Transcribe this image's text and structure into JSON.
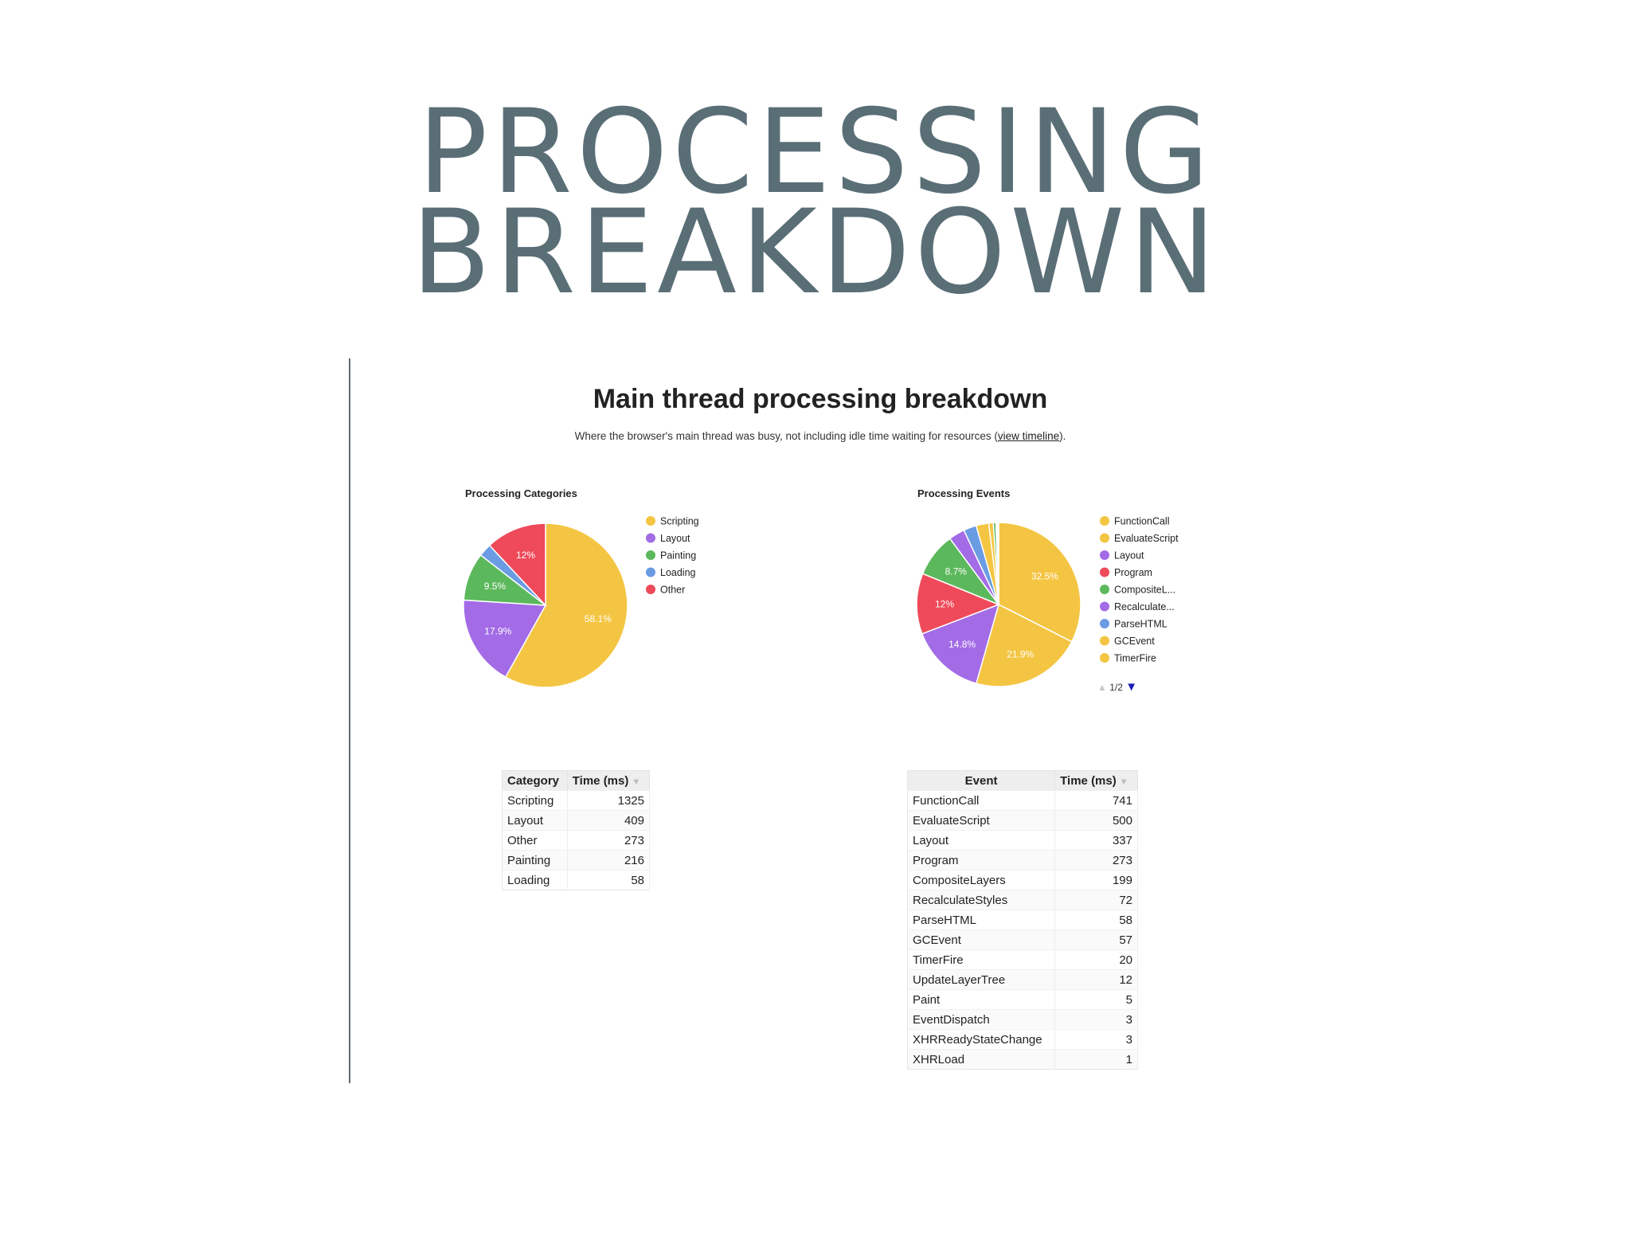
{
  "slide": {
    "title_line1": "PROCESSING",
    "title_line2": "BREAKDOWN"
  },
  "report": {
    "heading": "Main thread processing breakdown",
    "subtext_before": "Where the browser's main thread was busy, not including idle time waiting for resources (",
    "subtext_link": "view timeline",
    "subtext_after": ")."
  },
  "colors": {
    "yellow": "#f4c542",
    "purple": "#a36be6",
    "green": "#5cb85c",
    "blue": "#6a9be3",
    "red": "#ef4a5a"
  },
  "chart_data": [
    {
      "type": "pie",
      "title": "Processing Categories",
      "labels": [
        "Scripting",
        "Layout",
        "Painting",
        "Loading",
        "Other"
      ],
      "values": [
        1325,
        409,
        216,
        58,
        273
      ],
      "slice_labels": [
        "58.1%",
        "17.9%",
        "9.5%",
        "",
        "12%"
      ],
      "colors": [
        "#f4c542",
        "#a36be6",
        "#5cb85c",
        "#6a9be3",
        "#ef4a5a"
      ],
      "legend": "right"
    },
    {
      "type": "pie",
      "title": "Processing Events",
      "labels": [
        "FunctionCall",
        "EvaluateScript",
        "Layout",
        "Program",
        "CompositeL...",
        "Recalculate...",
        "ParseHTML",
        "GCEvent",
        "TimerFire",
        "UpdateLayerTree",
        "Paint",
        "EventDispatch",
        "XHRReadyStateChange",
        "XHRLoad"
      ],
      "values": [
        741,
        500,
        337,
        273,
        199,
        72,
        58,
        57,
        20,
        12,
        5,
        3,
        3,
        1
      ],
      "slice_labels": [
        "32.5%",
        "21.9%",
        "14.8%",
        "12%",
        "8.7%",
        "",
        "",
        "",
        "",
        "",
        "",
        "",
        "",
        ""
      ],
      "colors": [
        "#f4c542",
        "#f4c542",
        "#a36be6",
        "#ef4a5a",
        "#5cb85c",
        "#a36be6",
        "#6a9be3",
        "#f4c542",
        "#f4c542",
        "#5cb85c",
        "#a36be6",
        "#6a9be3",
        "#f4c542",
        "#5cb85c"
      ],
      "legend": "right",
      "legend_visible_count": 9,
      "legend_page": "1/2"
    }
  ],
  "categories_table": {
    "headers": [
      "Category",
      "Time (ms)"
    ],
    "rows": [
      [
        "Scripting",
        "1325"
      ],
      [
        "Layout",
        "409"
      ],
      [
        "Other",
        "273"
      ],
      [
        "Painting",
        "216"
      ],
      [
        "Loading",
        "58"
      ]
    ]
  },
  "events_table": {
    "headers": [
      "Event",
      "Time (ms)"
    ],
    "rows": [
      [
        "FunctionCall",
        "741"
      ],
      [
        "EvaluateScript",
        "500"
      ],
      [
        "Layout",
        "337"
      ],
      [
        "Program",
        "273"
      ],
      [
        "CompositeLayers",
        "199"
      ],
      [
        "RecalculateStyles",
        "72"
      ],
      [
        "ParseHTML",
        "58"
      ],
      [
        "GCEvent",
        "57"
      ],
      [
        "TimerFire",
        "20"
      ],
      [
        "UpdateLayerTree",
        "12"
      ],
      [
        "Paint",
        "5"
      ],
      [
        "EventDispatch",
        "3"
      ],
      [
        "XHRReadyStateChange",
        "3"
      ],
      [
        "XHRLoad",
        "1"
      ]
    ]
  }
}
